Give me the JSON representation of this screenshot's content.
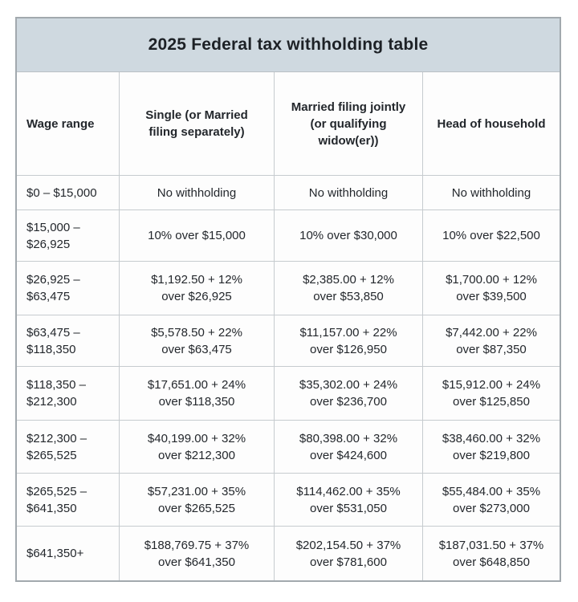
{
  "chart_data": {
    "type": "table",
    "title": "2025 Federal tax withholding table",
    "columns": [
      "Wage range",
      "Single (or Married\nfiling separately)",
      "Married filing jointly\n(or qualifying\nwidow(er))",
      "Head of household"
    ],
    "rows": [
      [
        "$0 – $15,000",
        "No withholding",
        "No withholding",
        "No withholding"
      ],
      [
        "$15,000 –\n$26,925",
        "10% over $15,000",
        "10% over $30,000",
        "10% over $22,500"
      ],
      [
        "$26,925 –\n$63,475",
        "$1,192.50 + 12%\nover $26,925",
        "$2,385.00 + 12%\nover $53,850",
        "$1,700.00 + 12%\nover $39,500"
      ],
      [
        "$63,475 –\n$118,350",
        "$5,578.50 + 22%\nover $63,475",
        "$11,157.00 + 22%\nover $126,950",
        "$7,442.00 + 22%\nover $87,350"
      ],
      [
        "$118,350 –\n$212,300",
        "$17,651.00 + 24%\nover $118,350",
        "$35,302.00 + 24%\nover $236,700",
        "$15,912.00 + 24%\nover $125,850"
      ],
      [
        "$212,300 –\n$265,525",
        "$40,199.00 + 32%\nover $212,300",
        "$80,398.00 + 32%\nover $424,600",
        "$38,460.00 + 32%\nover $219,800"
      ],
      [
        "$265,525 –\n$641,350",
        "$57,231.00 + 35%\nover $265,525",
        "$114,462.00 + 35%\nover $531,050",
        "$55,484.00 + 35%\nover $273,000"
      ],
      [
        "$641,350+",
        "$188,769.75 + 37%\nover $641,350",
        "$202,154.50 + 37%\nover $781,600",
        "$187,031.50 + 37%\nover $648,850"
      ]
    ],
    "layout": {
      "title_position": "top-band-centered",
      "first_column_align": "left",
      "other_columns_align": "center",
      "grid": "on"
    },
    "colors": {
      "title_band_bg": "#cfd9e0",
      "grid_line": "#c6cbcf",
      "outer_border": "#a2a9ae",
      "cell_bg": "#fdfdfd",
      "text": "#23272c",
      "title_text": "#1d2126"
    }
  }
}
